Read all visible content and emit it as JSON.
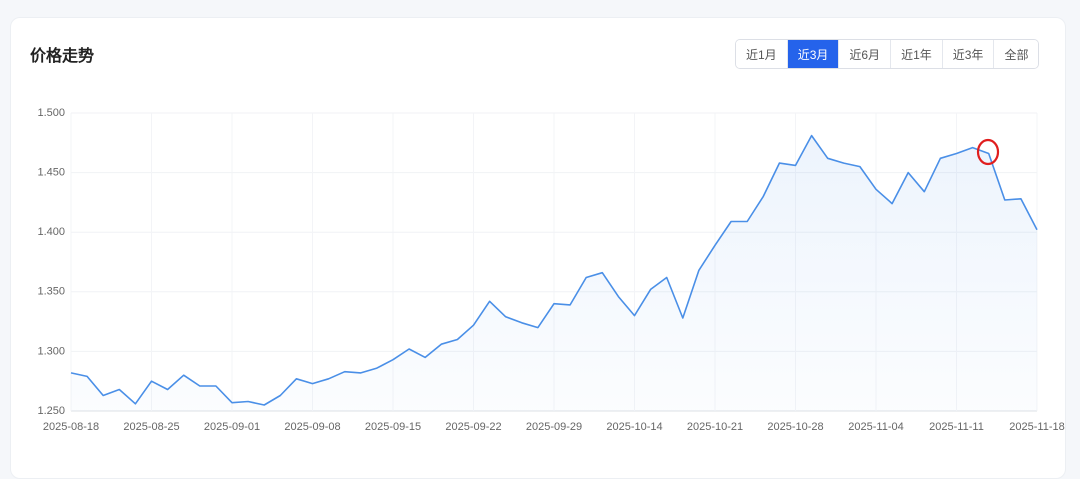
{
  "header": {
    "title": "价格走势",
    "ranges": [
      "近1月",
      "近3月",
      "近6月",
      "近1年",
      "近3年",
      "全部"
    ]
  },
  "chart_data": {
    "type": "line",
    "color": "#4a8fe7",
    "grid": true,
    "categories": [
      "2025-08-18",
      null,
      null,
      null,
      null,
      "2025-08-25",
      null,
      null,
      null,
      null,
      "2025-09-01",
      null,
      null,
      null,
      null,
      "2025-09-08",
      null,
      null,
      null,
      null,
      "2025-09-15",
      null,
      null,
      null,
      null,
      "2025-09-22",
      null,
      null,
      null,
      null,
      "2025-09-29",
      null,
      null,
      null,
      null,
      "2025-10-14",
      null,
      null,
      null,
      null,
      "2025-10-21",
      null,
      null,
      null,
      null,
      "2025-10-28",
      null,
      null,
      null,
      null,
      "2025-11-04",
      null,
      null,
      null,
      null,
      "2025-11-11",
      null,
      null,
      null,
      null,
      "2025-11-18"
    ],
    "values": [
      1.282,
      1.279,
      1.263,
      1.268,
      1.256,
      1.275,
      1.268,
      1.28,
      1.271,
      1.271,
      1.257,
      1.258,
      1.255,
      1.263,
      1.277,
      1.273,
      1.277,
      1.283,
      1.282,
      1.286,
      1.293,
      1.302,
      1.295,
      1.306,
      1.31,
      1.322,
      1.342,
      1.329,
      1.324,
      1.32,
      1.34,
      1.339,
      1.362,
      1.366,
      1.346,
      1.33,
      1.352,
      1.362,
      1.328,
      1.368,
      1.389,
      1.409,
      1.409,
      1.43,
      1.458,
      1.456,
      1.481,
      1.462,
      1.458,
      1.455,
      1.436,
      1.424,
      1.45,
      1.434,
      1.462,
      1.466,
      1.471,
      1.466,
      1.427,
      1.428,
      1.402
    ],
    "ylim": [
      1.25,
      1.5
    ],
    "yticks": [
      {
        "value": 1.25,
        "label": "1.250"
      },
      {
        "value": 1.3,
        "label": "1.300"
      },
      {
        "value": 1.35,
        "label": "1.350"
      },
      {
        "value": 1.4,
        "label": "1.400"
      },
      {
        "value": 1.45,
        "label": "1.450"
      },
      {
        "value": 1.5,
        "label": "1.500"
      }
    ]
  }
}
